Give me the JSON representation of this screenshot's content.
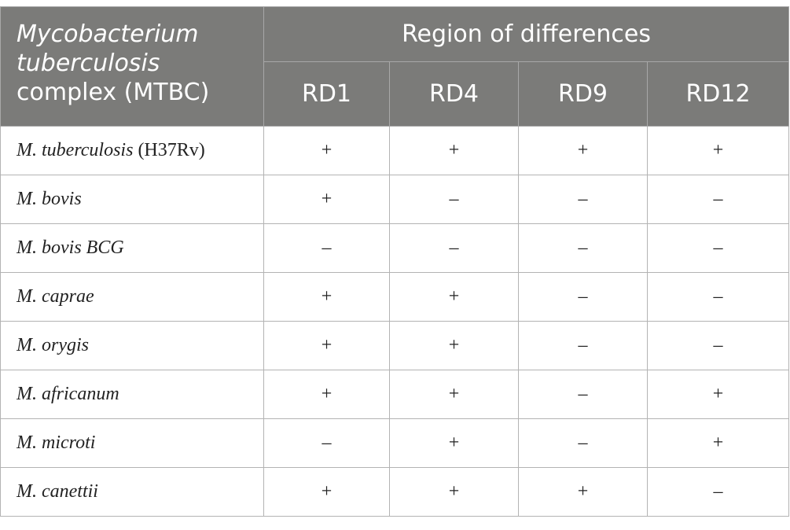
{
  "table": {
    "header": {
      "label_italic": "Mycobacterium tuberculosis",
      "label_plain": "complex (MTBC)",
      "group": "Region of differences",
      "columns": [
        "RD1",
        "RD4",
        "RD9",
        "RD12"
      ]
    },
    "rows": [
      {
        "species": "M. tuberculosis",
        "strain": "(H37Rv)",
        "cells": [
          "+",
          "+",
          "+",
          "+"
        ]
      },
      {
        "species": "M. bovis",
        "cells": [
          "+",
          "–",
          "–",
          "–"
        ]
      },
      {
        "species": "M. bovis BCG",
        "cells": [
          "–",
          "–",
          "–",
          "–"
        ]
      },
      {
        "species": "M. caprae",
        "cells": [
          "+",
          "+",
          "–",
          "–"
        ]
      },
      {
        "species": "M. orygis",
        "cells": [
          "+",
          "+",
          "–",
          "–"
        ]
      },
      {
        "species": "M. africanum",
        "cells": [
          "+",
          "+",
          "–",
          "+"
        ]
      },
      {
        "species": "M. microti",
        "cells": [
          "–",
          "+",
          "–",
          "+"
        ]
      },
      {
        "species": "M. canettii",
        "cells": [
          "+",
          "+",
          "+",
          "–"
        ]
      }
    ]
  }
}
